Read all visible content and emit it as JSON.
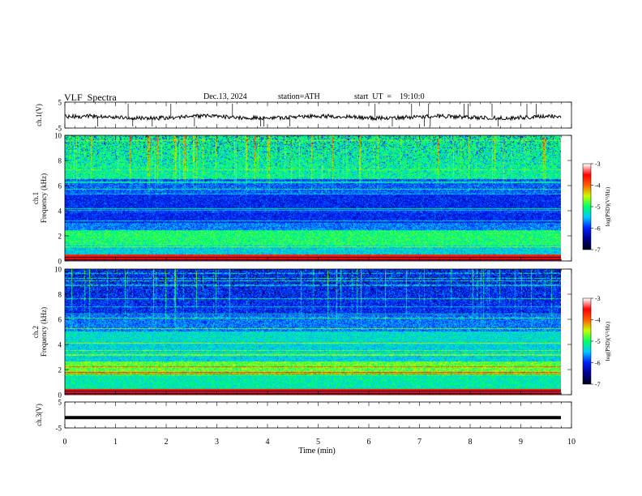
{
  "header": {
    "title": "VLF  Spectra",
    "date": "Dec.13, 2024",
    "station": "station=ATH",
    "start": "start  UT  =    19:10:0"
  },
  "chart_data": [
    {
      "type": "line",
      "title": "",
      "ylabel": "ch.1(V)",
      "ylim": [
        -5,
        5
      ],
      "yticks": [
        "5",
        "-5"
      ],
      "xlim": [
        0,
        10
      ],
      "description_level": -0.8
    },
    {
      "type": "heatmap",
      "ylabel_line1": "ch.1",
      "ylabel_line2": "Frequency (kHz)",
      "ylim": [
        0,
        10
      ],
      "yticks": [
        "10",
        "8",
        "6",
        "4",
        "2",
        "0"
      ],
      "xlim": [
        0,
        10
      ],
      "colorbar": {
        "label": "log(PSD)(V²/Hz)",
        "range": [
          -7,
          -3
        ],
        "ticks": [
          "-3",
          "-4",
          "-5",
          "-6",
          "-7"
        ]
      }
    },
    {
      "type": "heatmap",
      "ylabel_line1": "ch.2",
      "ylabel_line2": "Frequency (kHz)",
      "ylim": [
        0,
        10
      ],
      "yticks": [
        "10",
        "8",
        "6",
        "4",
        "2",
        "0"
      ],
      "xlim": [
        0,
        10
      ],
      "colorbar": {
        "label": "log(PSD)(V²/Hz)",
        "range": [
          -7,
          -3
        ],
        "ticks": [
          "-3",
          "-4",
          "-5",
          "-6",
          "-7"
        ]
      }
    },
    {
      "type": "line",
      "ylabel": "ch.3(V)",
      "ylim": [
        -5,
        5
      ],
      "yticks": [
        "5",
        "-5"
      ],
      "xlim": [
        0,
        10
      ],
      "level": -1.0,
      "xlabel": "Time  (min)",
      "xticks": [
        "0",
        "1",
        "2",
        "3",
        "4",
        "5",
        "6",
        "7",
        "8",
        "9",
        "10"
      ]
    }
  ],
  "colors": {
    "background": "#ffffff",
    "trace": "#000000",
    "colormap": [
      "#000020",
      "#00008c",
      "#0020ff",
      "#00c8ff",
      "#00ff66",
      "#c8ff00",
      "#ff6000",
      "#ff0000",
      "#ffffff"
    ]
  }
}
